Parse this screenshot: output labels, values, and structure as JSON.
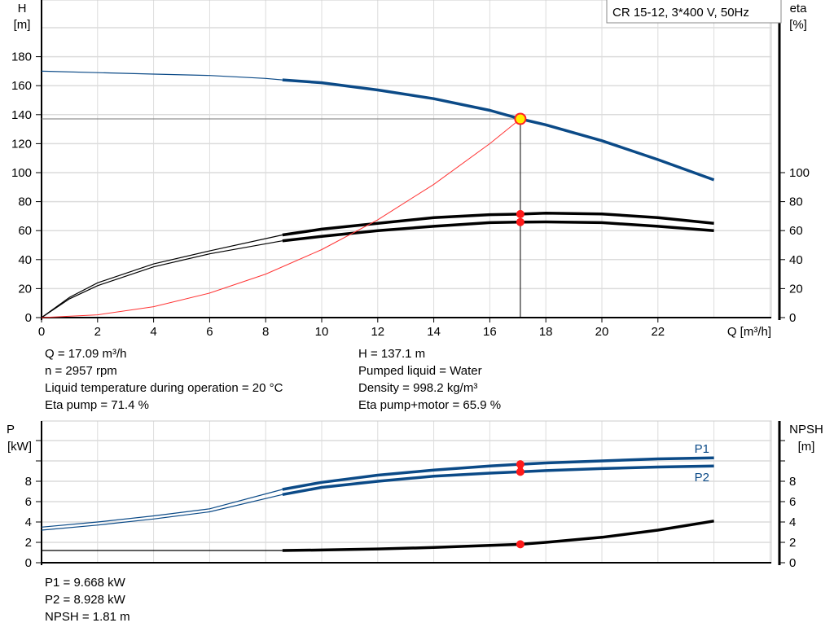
{
  "chart_data": [
    {
      "type": "line",
      "title": "CR 15-12, 3*400 V, 50Hz",
      "xlabel": "Q [m³/h]",
      "ylabel_left": [
        "H",
        "[m]"
      ],
      "ylabel_right": [
        "eta",
        "[%]"
      ],
      "xlim": [
        0,
        26
      ],
      "ylim_left": [
        0,
        200
      ],
      "ylim_right": [
        0,
        200
      ],
      "x_ticks": [
        "0",
        "2",
        "4",
        "6",
        "8",
        "10",
        "12",
        "14",
        "16",
        "18",
        "20",
        "22"
      ],
      "y_ticks_left": [
        "0",
        "20",
        "40",
        "60",
        "80",
        "100",
        "120",
        "140",
        "160",
        "180"
      ],
      "y_ticks_right": [
        "0",
        "20",
        "40",
        "60",
        "80",
        "100"
      ],
      "grid": true,
      "series": [
        {
          "key": "H",
          "color": "#0b4a87",
          "thick_from": 8.6,
          "x": [
            0,
            2,
            4,
            6,
            8,
            8.6,
            10,
            12,
            14,
            16,
            17.09,
            18,
            20,
            22,
            24
          ],
          "y": [
            170,
            169,
            168,
            167,
            165,
            164,
            162,
            157,
            151,
            143,
            137.1,
            133,
            122,
            109,
            95
          ]
        },
        {
          "key": "eta_pump",
          "color": "#000000",
          "thick_from": 8.6,
          "x": [
            0,
            1,
            2,
            4,
            6,
            8.6,
            10,
            12,
            14,
            16,
            17.09,
            18,
            20,
            22,
            24
          ],
          "y": [
            0,
            14,
            24,
            37,
            46,
            57,
            61,
            65,
            69,
            71,
            71.4,
            72,
            71.5,
            69,
            65
          ]
        },
        {
          "key": "eta_pump_motor",
          "color": "#000000",
          "thick_from": 8.6,
          "x": [
            0,
            1,
            2,
            4,
            6,
            8.6,
            10,
            12,
            14,
            16,
            17.09,
            18,
            20,
            22,
            24
          ],
          "y": [
            0,
            13,
            22,
            35,
            44,
            53,
            56,
            60,
            63,
            65.5,
            65.9,
            66,
            65.5,
            63,
            60
          ]
        },
        {
          "key": "system",
          "color": "#ff3333",
          "x": [
            0,
            2,
            4,
            6,
            8,
            10,
            12,
            14,
            16,
            17.09
          ],
          "y": [
            0,
            1.9,
            7.5,
            16.9,
            30,
            46.9,
            67.5,
            91.9,
            120,
            137.1
          ]
        }
      ],
      "duty_point": {
        "q": 17.09,
        "h": 137.1,
        "eta_pump": 71.4,
        "eta_pump_motor": 65.9
      }
    },
    {
      "type": "line",
      "ylabel_left": [
        "P",
        "[kW]"
      ],
      "ylabel_right": [
        "NPSH",
        "[m]"
      ],
      "xlim": [
        0,
        26
      ],
      "ylim_left": [
        0,
        14
      ],
      "y_ticks_left": [
        "0",
        "2",
        "4",
        "6",
        "8"
      ],
      "y_ticks_right": [
        "0",
        "2",
        "4",
        "6",
        "8"
      ],
      "grid": true,
      "series": [
        {
          "key": "P1",
          "name": "P1",
          "color": "#0b4a87",
          "thick_from": 8.6,
          "x": [
            0,
            2,
            4,
            6,
            8.6,
            10,
            12,
            14,
            16,
            17.09,
            18,
            20,
            22,
            24
          ],
          "y": [
            3.5,
            4.0,
            4.6,
            5.3,
            7.2,
            7.9,
            8.6,
            9.1,
            9.5,
            9.668,
            9.8,
            10.0,
            10.2,
            10.3
          ]
        },
        {
          "key": "P2",
          "name": "P2",
          "color": "#0b4a87",
          "thick_from": 8.6,
          "x": [
            0,
            2,
            4,
            6,
            8.6,
            10,
            12,
            14,
            16,
            17.09,
            18,
            20,
            22,
            24
          ],
          "y": [
            3.2,
            3.7,
            4.3,
            5.0,
            6.7,
            7.4,
            8.0,
            8.5,
            8.8,
            8.928,
            9.05,
            9.25,
            9.4,
            9.5
          ]
        },
        {
          "key": "NPSH",
          "color": "#000000",
          "thick_from": 8.6,
          "x": [
            0,
            2,
            8.6,
            10,
            12,
            14,
            16,
            17.09,
            18,
            20,
            22,
            24
          ],
          "y": [
            1.2,
            1.2,
            1.2,
            1.25,
            1.35,
            1.5,
            1.7,
            1.81,
            2.0,
            2.5,
            3.2,
            4.1
          ]
        }
      ],
      "duty_point": {
        "q": 17.09,
        "p1": 9.668,
        "p2": 8.928,
        "npsh": 1.81
      }
    }
  ],
  "info_top": {
    "left": [
      "Q = 17.09 m³/h",
      "n = 2957 rpm",
      "Liquid temperature during operation = 20 °C",
      "Eta pump = 71.4 %"
    ],
    "right": [
      "H = 137.1 m",
      "Pumped liquid = Water",
      "Density = 998.2 kg/m³",
      "Eta pump+motor = 65.9 %"
    ]
  },
  "info_bottom": [
    "P1 = 9.668 kW",
    "P2 = 8.928 kW",
    "NPSH = 1.81 m"
  ]
}
